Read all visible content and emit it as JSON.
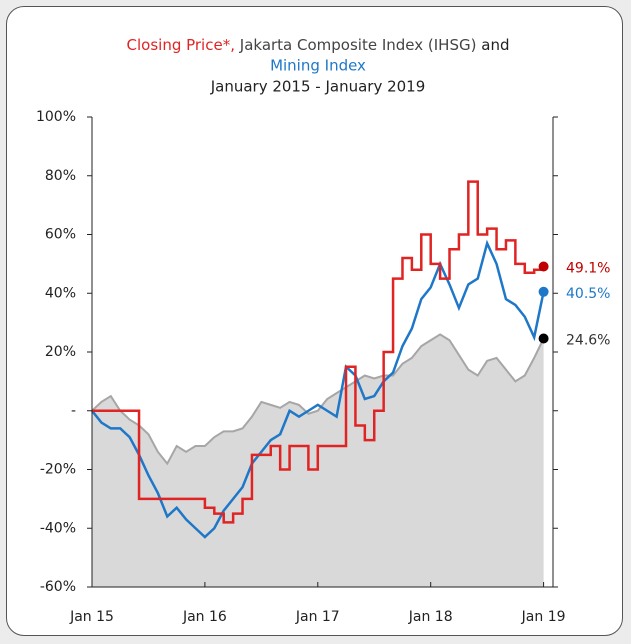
{
  "chart_data": {
    "type": "line",
    "title_separators": [
      ",",
      "and"
    ],
    "subtitle": "January 2015 - January 2019",
    "x": [
      0,
      1,
      2,
      3,
      4,
      5,
      6,
      7,
      8,
      9,
      10,
      11,
      12,
      13,
      14,
      15,
      16,
      17,
      18,
      19,
      20,
      21,
      22,
      23,
      24,
      25,
      26,
      27,
      28,
      29,
      30,
      31,
      32,
      33,
      34,
      35,
      36,
      37,
      38,
      39,
      40,
      41,
      42,
      43,
      44,
      45,
      46,
      47,
      48
    ],
    "xlim": [
      0,
      49
    ],
    "xticks": [
      {
        "value": 0,
        "label": "Jan 15"
      },
      {
        "value": 12,
        "label": "Jan 16"
      },
      {
        "value": 24,
        "label": "Jan 17"
      },
      {
        "value": 36,
        "label": "Jan 18"
      },
      {
        "value": 48,
        "label": "Jan 19"
      }
    ],
    "ylim": [
      -60,
      100
    ],
    "yticks": [
      {
        "value": -60,
        "label": "-60%"
      },
      {
        "value": -40,
        "label": "-40%"
      },
      {
        "value": -20,
        "label": "-20%"
      },
      {
        "value": 0,
        "label": "-"
      },
      {
        "value": 20,
        "label": "20%"
      },
      {
        "value": 40,
        "label": "40%"
      },
      {
        "value": 60,
        "label": "60%"
      },
      {
        "value": 80,
        "label": "80%"
      },
      {
        "value": 100,
        "label": "100%"
      }
    ],
    "series": [
      {
        "name": "Jakarta Composite Index (IHSG)",
        "color": "#a6a6a6",
        "fill": "#d9d9d9",
        "end_color": "#000000",
        "values": [
          0,
          3,
          5,
          0,
          -3,
          -5,
          -8,
          -14,
          -18,
          -12,
          -14,
          -12,
          -12,
          -9,
          -7,
          -7,
          -6,
          -2,
          3,
          2,
          1,
          3,
          2,
          -1,
          0,
          4,
          6,
          8,
          10,
          12,
          11,
          12,
          12,
          16,
          18,
          22,
          24,
          26,
          24,
          19,
          14,
          12,
          17,
          18,
          14,
          10,
          12,
          18,
          24.6
        ],
        "value_labels": [
          null,
          null,
          null,
          null,
          null,
          null,
          null,
          null,
          null,
          null,
          null,
          null,
          null,
          null,
          null,
          null,
          null,
          null,
          null,
          null,
          null,
          null,
          null,
          null,
          null,
          null,
          null,
          null,
          null,
          null,
          null,
          null,
          null,
          null,
          null,
          null,
          null,
          null,
          null,
          null,
          null,
          null,
          null,
          null,
          null,
          null,
          null,
          null,
          "24.6%"
        ]
      },
      {
        "name": "Mining Index",
        "color": "#1f77c8",
        "end_color": "#1f77c8",
        "values": [
          0,
          -4,
          -6,
          -6,
          -9,
          -15,
          -22,
          -28,
          -36,
          -33,
          -37,
          -40,
          -43,
          -40,
          -34,
          -30,
          -26,
          -18,
          -14,
          -10,
          -8,
          0,
          -2,
          0,
          2,
          0,
          -2,
          15,
          12,
          4,
          5,
          10,
          13,
          22,
          28,
          38,
          42,
          50,
          43,
          35,
          43,
          45,
          57,
          50,
          38,
          36,
          32,
          25,
          40.5
        ],
        "value_labels": [
          null,
          null,
          null,
          null,
          null,
          null,
          null,
          null,
          null,
          null,
          null,
          null,
          null,
          null,
          null,
          null,
          null,
          null,
          null,
          null,
          null,
          null,
          null,
          null,
          null,
          null,
          null,
          null,
          null,
          null,
          null,
          null,
          null,
          null,
          null,
          null,
          null,
          null,
          null,
          null,
          null,
          null,
          null,
          null,
          null,
          null,
          null,
          null,
          "40.5%"
        ]
      },
      {
        "name": "Closing Price*",
        "color": "#e02424",
        "end_color": "#c00000",
        "step": true,
        "values": [
          0,
          0,
          0,
          0,
          0,
          -30,
          -30,
          -30,
          -30,
          -30,
          -30,
          -30,
          -33,
          -35,
          -38,
          -35,
          -30,
          -15,
          -15,
          -12,
          -20,
          -12,
          -12,
          -20,
          -12,
          -12,
          -12,
          15,
          -5,
          -10,
          0,
          20,
          45,
          52,
          48,
          60,
          50,
          45,
          55,
          60,
          78,
          60,
          62,
          55,
          58,
          50,
          47,
          48,
          49.1
        ],
        "value_labels": [
          null,
          null,
          null,
          null,
          null,
          null,
          null,
          null,
          null,
          null,
          null,
          null,
          null,
          null,
          null,
          null,
          null,
          null,
          null,
          null,
          null,
          null,
          null,
          null,
          null,
          null,
          null,
          null,
          null,
          null,
          null,
          null,
          null,
          null,
          null,
          null,
          null,
          null,
          null,
          null,
          null,
          null,
          null,
          null,
          null,
          null,
          null,
          null,
          "49.1%"
        ]
      }
    ]
  }
}
